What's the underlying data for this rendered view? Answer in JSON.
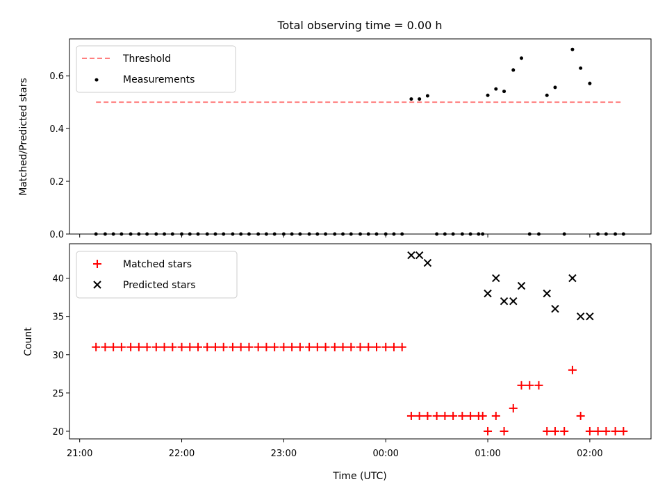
{
  "chart_data": [
    {
      "type": "scatter",
      "title": "Total observing time = 0.00 h",
      "xlabel": "",
      "ylabel": "Matched/Predicted stars",
      "xlim": [
        -0.1,
        5.6
      ],
      "ylim": [
        0,
        0.74
      ],
      "yticks": [
        0.0,
        0.2,
        0.4,
        0.6
      ],
      "ytick_labels": [
        "0.0",
        "0.2",
        "0.4",
        "0.6"
      ],
      "legend_position": "top-left",
      "colors": {
        "threshold": "#ff7f7f",
        "measurements": "#000000"
      },
      "threshold": {
        "name": "Threshold",
        "y": 0.5,
        "x": [
          0.16,
          5.32
        ]
      },
      "series": [
        {
          "name": "Measurements",
          "points": [
            [
              0.16,
              0
            ],
            [
              0.25,
              0
            ],
            [
              0.33,
              0
            ],
            [
              0.41,
              0
            ],
            [
              0.5,
              0
            ],
            [
              0.58,
              0
            ],
            [
              0.66,
              0
            ],
            [
              0.75,
              0
            ],
            [
              0.83,
              0
            ],
            [
              0.91,
              0
            ],
            [
              1.0,
              0
            ],
            [
              1.08,
              0
            ],
            [
              1.16,
              0
            ],
            [
              1.25,
              0
            ],
            [
              1.33,
              0
            ],
            [
              1.41,
              0
            ],
            [
              1.5,
              0
            ],
            [
              1.58,
              0
            ],
            [
              1.66,
              0
            ],
            [
              1.75,
              0
            ],
            [
              1.83,
              0
            ],
            [
              1.91,
              0
            ],
            [
              2.0,
              0
            ],
            [
              2.08,
              0
            ],
            [
              2.16,
              0
            ],
            [
              2.25,
              0
            ],
            [
              2.33,
              0
            ],
            [
              2.41,
              0
            ],
            [
              2.5,
              0
            ],
            [
              2.58,
              0
            ],
            [
              2.66,
              0
            ],
            [
              2.75,
              0
            ],
            [
              2.83,
              0
            ],
            [
              2.91,
              0
            ],
            [
              3.0,
              0
            ],
            [
              3.08,
              0
            ],
            [
              3.16,
              0
            ],
            [
              3.25,
              0.512
            ],
            [
              3.33,
              0.512
            ],
            [
              3.41,
              0.524
            ],
            [
              3.5,
              0
            ],
            [
              3.58,
              0
            ],
            [
              3.66,
              0
            ],
            [
              3.75,
              0
            ],
            [
              3.83,
              0
            ],
            [
              3.91,
              0
            ],
            [
              3.95,
              0
            ],
            [
              4.0,
              0.526
            ],
            [
              4.08,
              0.55
            ],
            [
              4.16,
              0.541
            ],
            [
              4.25,
              0.622
            ],
            [
              4.33,
              0.667
            ],
            [
              4.41,
              0
            ],
            [
              4.5,
              0
            ],
            [
              4.58,
              0.526
            ],
            [
              4.66,
              0.556
            ],
            [
              4.75,
              0
            ],
            [
              4.83,
              0.7
            ],
            [
              4.91,
              0.629
            ],
            [
              5.0,
              0.571
            ],
            [
              5.08,
              0
            ],
            [
              5.16,
              0
            ],
            [
              5.25,
              0
            ],
            [
              5.33,
              0
            ]
          ]
        }
      ]
    },
    {
      "type": "scatter",
      "title": "",
      "xlabel": "Time (UTC)",
      "ylabel": "Count",
      "xlim": [
        -0.1,
        5.6
      ],
      "ylim": [
        19,
        44.5
      ],
      "yticks": [
        20,
        25,
        30,
        35,
        40
      ],
      "ytick_labels": [
        "20",
        "25",
        "30",
        "35",
        "40"
      ],
      "xticks": [
        0,
        1,
        2,
        3,
        4,
        5
      ],
      "xtick_labels": [
        "21:00",
        "22:00",
        "23:00",
        "00:00",
        "01:00",
        "02:00"
      ],
      "legend_position": "top-left",
      "colors": {
        "matched": "#ff0000",
        "predicted": "#000000"
      },
      "series": [
        {
          "name": "Matched stars",
          "points": [
            [
              0.16,
              31
            ],
            [
              0.25,
              31
            ],
            [
              0.33,
              31
            ],
            [
              0.41,
              31
            ],
            [
              0.5,
              31
            ],
            [
              0.58,
              31
            ],
            [
              0.66,
              31
            ],
            [
              0.75,
              31
            ],
            [
              0.83,
              31
            ],
            [
              0.91,
              31
            ],
            [
              1.0,
              31
            ],
            [
              1.08,
              31
            ],
            [
              1.16,
              31
            ],
            [
              1.25,
              31
            ],
            [
              1.33,
              31
            ],
            [
              1.41,
              31
            ],
            [
              1.5,
              31
            ],
            [
              1.58,
              31
            ],
            [
              1.66,
              31
            ],
            [
              1.75,
              31
            ],
            [
              1.83,
              31
            ],
            [
              1.91,
              31
            ],
            [
              2.0,
              31
            ],
            [
              2.08,
              31
            ],
            [
              2.16,
              31
            ],
            [
              2.25,
              31
            ],
            [
              2.33,
              31
            ],
            [
              2.41,
              31
            ],
            [
              2.5,
              31
            ],
            [
              2.58,
              31
            ],
            [
              2.66,
              31
            ],
            [
              2.75,
              31
            ],
            [
              2.83,
              31
            ],
            [
              2.91,
              31
            ],
            [
              3.0,
              31
            ],
            [
              3.08,
              31
            ],
            [
              3.16,
              31
            ],
            [
              3.25,
              22
            ],
            [
              3.33,
              22
            ],
            [
              3.41,
              22
            ],
            [
              3.5,
              22
            ],
            [
              3.58,
              22
            ],
            [
              3.66,
              22
            ],
            [
              3.75,
              22
            ],
            [
              3.83,
              22
            ],
            [
              3.91,
              22
            ],
            [
              3.95,
              22
            ],
            [
              4.0,
              20
            ],
            [
              4.08,
              22
            ],
            [
              4.16,
              20
            ],
            [
              4.25,
              23
            ],
            [
              4.33,
              26
            ],
            [
              4.41,
              26
            ],
            [
              4.5,
              26
            ],
            [
              4.58,
              20
            ],
            [
              4.66,
              20
            ],
            [
              4.75,
              20
            ],
            [
              4.83,
              28
            ],
            [
              4.91,
              22
            ],
            [
              5.0,
              20
            ],
            [
              5.08,
              20
            ],
            [
              5.16,
              20
            ],
            [
              5.25,
              20
            ],
            [
              5.33,
              20
            ]
          ]
        },
        {
          "name": "Predicted stars",
          "points": [
            [
              3.25,
              43
            ],
            [
              3.33,
              43
            ],
            [
              3.41,
              42
            ],
            [
              4.0,
              38
            ],
            [
              4.08,
              40
            ],
            [
              4.16,
              37
            ],
            [
              4.25,
              37
            ],
            [
              4.33,
              39
            ],
            [
              4.58,
              38
            ],
            [
              4.66,
              36
            ],
            [
              4.83,
              40
            ],
            [
              4.91,
              35
            ],
            [
              5.0,
              35
            ]
          ]
        }
      ]
    }
  ]
}
